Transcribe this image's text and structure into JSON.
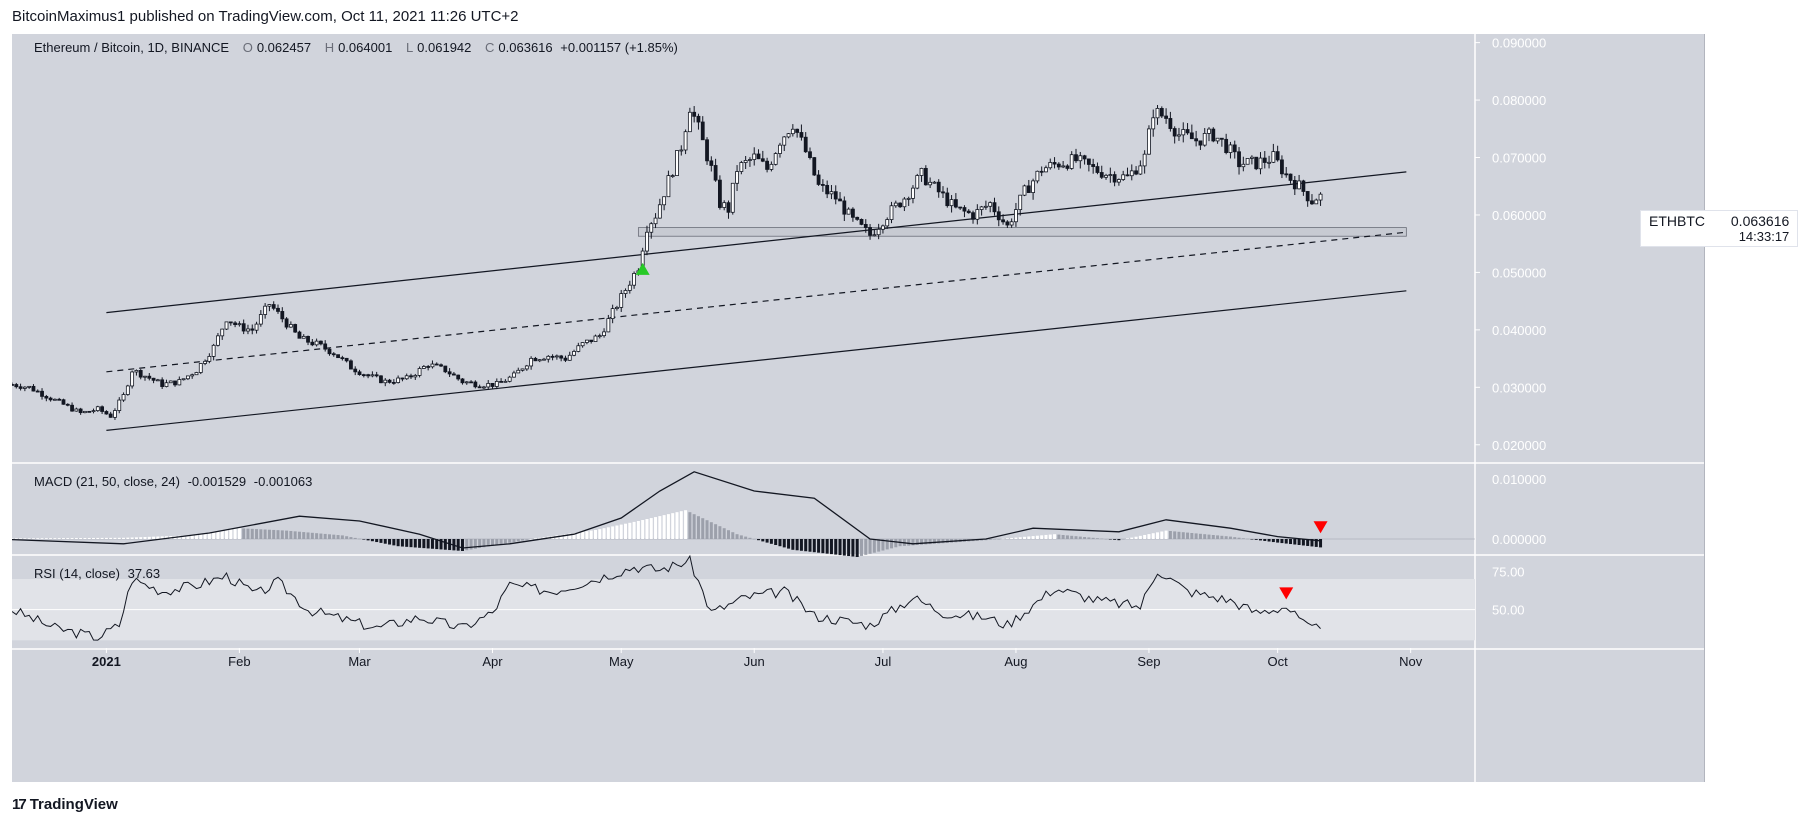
{
  "header": {
    "publisher_line": "BitcoinMaximus1 published on TradingView.com, Oct 11, 2021 11:26 UTC+2"
  },
  "footer": {
    "brand": "TradingView",
    "logo_glyph": "17"
  },
  "price_panel": {
    "title": "Ethereum / Bitcoin, 1D, BINANCE",
    "o_label": "O",
    "o": "0.062457",
    "h_label": "H",
    "h": "0.064001",
    "l_label": "L",
    "l": "0.061942",
    "c_label": "C",
    "c": "0.063616",
    "change": "+0.001157 (+1.85%)",
    "currency": "BTC",
    "tag_symbol": "ETHBTC",
    "tag_price": "0.063616",
    "tag_timer": "14:33:17"
  },
  "macd_panel": {
    "title": "MACD (21, 50, close, 24)",
    "v1": "-0.001529",
    "v2": "-0.001063"
  },
  "rsi_panel": {
    "title": "RSI (14, close)",
    "value": "37.63"
  },
  "colors": {
    "background": "#d1d4dc",
    "candle_up": "#ffffff",
    "candle_down": "#131722",
    "hist_up": "#ffffff",
    "hist_down": "#131722",
    "hist_fade": "#9ca0ab",
    "arrow_up": "#26c926",
    "arrow_down": "#ff0000",
    "rsi_band": "#e1e3e8"
  },
  "chart_data": [
    {
      "type": "candlestick",
      "title": "Ethereum / Bitcoin, 1D, BINANCE",
      "x_range": [
        "2020-12-10",
        "2021-11-16"
      ],
      "x_ticks": [
        {
          "date": "2021-01-01",
          "label": "2021"
        },
        {
          "date": "2021-02-01",
          "label": "Feb"
        },
        {
          "date": "2021-03-01",
          "label": "Mar"
        },
        {
          "date": "2021-04-01",
          "label": "Apr"
        },
        {
          "date": "2021-05-01",
          "label": "May"
        },
        {
          "date": "2021-06-01",
          "label": "Jun"
        },
        {
          "date": "2021-07-01",
          "label": "Jul"
        },
        {
          "date": "2021-08-01",
          "label": "Aug"
        },
        {
          "date": "2021-09-01",
          "label": "Sep"
        },
        {
          "date": "2021-10-01",
          "label": "Oct"
        },
        {
          "date": "2021-11-01",
          "label": "Nov"
        }
      ],
      "y_range": [
        0.017,
        0.0915
      ],
      "y_ticks": [
        "0.020000",
        "0.030000",
        "0.040000",
        "0.050000",
        "0.060000",
        "0.070000",
        "0.080000",
        "0.090000"
      ],
      "close_path": [
        [
          "2020-12-10",
          0.0305
        ],
        [
          "2020-12-14",
          0.03
        ],
        [
          "2020-12-18",
          0.0285
        ],
        [
          "2020-12-22",
          0.027
        ],
        [
          "2020-12-26",
          0.0255
        ],
        [
          "2020-12-30",
          0.0262
        ],
        [
          "2021-01-02",
          0.025
        ],
        [
          "2021-01-05",
          0.0285
        ],
        [
          "2021-01-07",
          0.033
        ],
        [
          "2021-01-10",
          0.032
        ],
        [
          "2021-01-14",
          0.0305
        ],
        [
          "2021-01-18",
          0.031
        ],
        [
          "2021-01-22",
          0.033
        ],
        [
          "2021-01-26",
          0.037
        ],
        [
          "2021-01-29",
          0.042
        ],
        [
          "2021-02-01",
          0.0405
        ],
        [
          "2021-02-04",
          0.04
        ],
        [
          "2021-02-08",
          0.0445
        ],
        [
          "2021-02-11",
          0.042
        ],
        [
          "2021-02-15",
          0.0385
        ],
        [
          "2021-02-19",
          0.0375
        ],
        [
          "2021-02-23",
          0.036
        ],
        [
          "2021-02-27",
          0.0335
        ],
        [
          "2021-03-03",
          0.032
        ],
        [
          "2021-03-07",
          0.031
        ],
        [
          "2021-03-12",
          0.0315
        ],
        [
          "2021-03-17",
          0.034
        ],
        [
          "2021-03-21",
          0.033
        ],
        [
          "2021-03-25",
          0.031
        ],
        [
          "2021-03-29",
          0.0305
        ],
        [
          "2021-04-02",
          0.0305
        ],
        [
          "2021-04-06",
          0.032
        ],
        [
          "2021-04-10",
          0.035
        ],
        [
          "2021-04-14",
          0.0355
        ],
        [
          "2021-04-18",
          0.035
        ],
        [
          "2021-04-22",
          0.0375
        ],
        [
          "2021-04-26",
          0.039
        ],
        [
          "2021-04-29",
          0.043
        ],
        [
          "2021-05-02",
          0.047
        ],
        [
          "2021-05-05",
          0.051
        ],
        [
          "2021-05-07",
          0.058
        ],
        [
          "2021-05-09",
          0.06
        ],
        [
          "2021-05-11",
          0.064
        ],
        [
          "2021-05-13",
          0.068
        ],
        [
          "2021-05-15",
          0.072
        ],
        [
          "2021-05-17",
          0.079
        ],
        [
          "2021-05-19",
          0.075
        ],
        [
          "2021-05-22",
          0.068
        ],
        [
          "2021-05-24",
          0.062
        ],
        [
          "2021-05-26",
          0.061
        ],
        [
          "2021-05-28",
          0.068
        ],
        [
          "2021-06-01",
          0.07
        ],
        [
          "2021-06-04",
          0.068
        ],
        [
          "2021-06-07",
          0.073
        ],
        [
          "2021-06-10",
          0.076
        ],
        [
          "2021-06-13",
          0.071
        ],
        [
          "2021-06-16",
          0.065
        ],
        [
          "2021-06-20",
          0.063
        ],
        [
          "2021-06-24",
          0.059
        ],
        [
          "2021-06-28",
          0.0565
        ],
        [
          "2021-07-02",
          0.06
        ],
        [
          "2021-07-06",
          0.063
        ],
        [
          "2021-07-10",
          0.067
        ],
        [
          "2021-07-14",
          0.064
        ],
        [
          "2021-07-18",
          0.061
        ],
        [
          "2021-07-22",
          0.06
        ],
        [
          "2021-07-26",
          0.062
        ],
        [
          "2021-07-30",
          0.058
        ],
        [
          "2021-08-03",
          0.064
        ],
        [
          "2021-08-07",
          0.068
        ],
        [
          "2021-08-11",
          0.069
        ],
        [
          "2021-08-15",
          0.0695
        ],
        [
          "2021-08-19",
          0.068
        ],
        [
          "2021-08-23",
          0.067
        ],
        [
          "2021-08-27",
          0.0665
        ],
        [
          "2021-08-31",
          0.07
        ],
        [
          "2021-09-02",
          0.078
        ],
        [
          "2021-09-05",
          0.077
        ],
        [
          "2021-09-08",
          0.074
        ],
        [
          "2021-09-12",
          0.073
        ],
        [
          "2021-09-16",
          0.074
        ],
        [
          "2021-09-19",
          0.072
        ],
        [
          "2021-09-22",
          0.069
        ],
        [
          "2021-09-26",
          0.069
        ],
        [
          "2021-09-30",
          0.07
        ],
        [
          "2021-10-03",
          0.067
        ],
        [
          "2021-10-06",
          0.065
        ],
        [
          "2021-10-09",
          0.0625
        ],
        [
          "2021-10-11",
          0.0636
        ]
      ],
      "last_price": 0.063616,
      "trendlines": [
        {
          "style": "solid",
          "from": [
            "2021-01-01",
            0.043
          ],
          "to": [
            "2021-10-31",
            0.0675
          ]
        },
        {
          "style": "solid",
          "from": [
            "2021-01-01",
            0.0225
          ],
          "to": [
            "2021-10-31",
            0.0468
          ]
        },
        {
          "style": "dashed",
          "from": [
            "2021-01-01",
            0.0327
          ],
          "to": [
            "2021-10-31",
            0.057
          ]
        }
      ],
      "support_zone": {
        "from_date": "2021-05-05",
        "to_date": "2021-10-31",
        "low": 0.0563,
        "high": 0.0578
      },
      "markers": [
        {
          "date": "2021-05-06",
          "price": 0.0508,
          "shape": "arrow-up",
          "color": "#26c926"
        }
      ]
    },
    {
      "type": "area",
      "title": "MACD (21, 50, close, 24)",
      "y_ticks": [
        "0.010000",
        "0.000000"
      ],
      "y_range": [
        -0.0025,
        0.0125
      ],
      "macd_path": [
        [
          "2020-12-10",
          -0.0001
        ],
        [
          "2021-01-05",
          -0.0008
        ],
        [
          "2021-01-25",
          0.001
        ],
        [
          "2021-02-15",
          0.0038
        ],
        [
          "2021-03-01",
          0.003
        ],
        [
          "2021-03-15",
          0.0008
        ],
        [
          "2021-03-25",
          -0.0015
        ],
        [
          "2021-04-05",
          -0.0008
        ],
        [
          "2021-04-20",
          0.0008
        ],
        [
          "2021-05-01",
          0.0035
        ],
        [
          "2021-05-10",
          0.008
        ],
        [
          "2021-05-18",
          0.0112
        ],
        [
          "2021-06-01",
          0.008
        ],
        [
          "2021-06-15",
          0.0068
        ],
        [
          "2021-06-28",
          0.0
        ],
        [
          "2021-07-08",
          -0.0008
        ],
        [
          "2021-07-25",
          0.0
        ],
        [
          "2021-08-05",
          0.0018
        ],
        [
          "2021-08-25",
          0.0012
        ],
        [
          "2021-09-05",
          0.0032
        ],
        [
          "2021-09-20",
          0.0018
        ],
        [
          "2021-10-01",
          0.0004
        ],
        [
          "2021-10-11",
          -0.0003
        ]
      ],
      "histogram_path": [
        [
          "2020-12-10",
          0.0001
        ],
        [
          "2021-01-05",
          0.0002
        ],
        [
          "2021-01-20",
          0.0006
        ],
        [
          "2021-02-01",
          0.0018
        ],
        [
          "2021-02-12",
          0.0014
        ],
        [
          "2021-02-25",
          0.0006
        ],
        [
          "2021-03-10",
          -0.0012
        ],
        [
          "2021-03-25",
          -0.002
        ],
        [
          "2021-04-10",
          0.0
        ],
        [
          "2021-04-25",
          0.0015
        ],
        [
          "2021-05-05",
          0.003
        ],
        [
          "2021-05-16",
          0.0048
        ],
        [
          "2021-05-28",
          0.0008
        ],
        [
          "2021-06-10",
          -0.0018
        ],
        [
          "2021-06-25",
          -0.003
        ],
        [
          "2021-07-05",
          -0.0012
        ],
        [
          "2021-07-25",
          -0.0002
        ],
        [
          "2021-08-10",
          0.0008
        ],
        [
          "2021-08-25",
          -0.0002
        ],
        [
          "2021-09-05",
          0.0014
        ],
        [
          "2021-09-20",
          0.0004
        ],
        [
          "2021-10-01",
          -0.0006
        ],
        [
          "2021-10-11",
          -0.0014
        ]
      ],
      "markers": [
        {
          "date": "2021-10-11",
          "value": 0.0018,
          "shape": "arrow-down",
          "color": "#ff0000"
        }
      ]
    },
    {
      "type": "line",
      "title": "RSI (14, close)",
      "y_ticks": [
        "75.00",
        "50.00"
      ],
      "y_range": [
        25,
        85
      ],
      "band": [
        30,
        70
      ],
      "rsi_path": [
        [
          "2020-12-10",
          50
        ],
        [
          "2020-12-20",
          38
        ],
        [
          "2020-12-30",
          32
        ],
        [
          "2021-01-04",
          40
        ],
        [
          "2021-01-07",
          70
        ],
        [
          "2021-01-14",
          62
        ],
        [
          "2021-01-22",
          66
        ],
        [
          "2021-01-29",
          72
        ],
        [
          "2021-02-05",
          60
        ],
        [
          "2021-02-10",
          68
        ],
        [
          "2021-02-17",
          50
        ],
        [
          "2021-02-25",
          44
        ],
        [
          "2021-03-05",
          38
        ],
        [
          "2021-03-15",
          45
        ],
        [
          "2021-03-25",
          38
        ],
        [
          "2021-04-01",
          48
        ],
        [
          "2021-04-05",
          66
        ],
        [
          "2021-04-15",
          62
        ],
        [
          "2021-04-25",
          70
        ],
        [
          "2021-05-04",
          78
        ],
        [
          "2021-05-10",
          76
        ],
        [
          "2021-05-17",
          82
        ],
        [
          "2021-05-22",
          48
        ],
        [
          "2021-05-30",
          58
        ],
        [
          "2021-06-08",
          62
        ],
        [
          "2021-06-15",
          46
        ],
        [
          "2021-06-28",
          40
        ],
        [
          "2021-07-08",
          58
        ],
        [
          "2021-07-15",
          48
        ],
        [
          "2021-07-25",
          45
        ],
        [
          "2021-07-30",
          40
        ],
        [
          "2021-08-10",
          64
        ],
        [
          "2021-08-20",
          56
        ],
        [
          "2021-08-30",
          52
        ],
        [
          "2021-09-03",
          76
        ],
        [
          "2021-09-10",
          62
        ],
        [
          "2021-09-20",
          56
        ],
        [
          "2021-09-26",
          48
        ],
        [
          "2021-10-03",
          52
        ],
        [
          "2021-10-08",
          38
        ],
        [
          "2021-10-11",
          37.63
        ]
      ],
      "markers": [
        {
          "date": "2021-10-03",
          "value": 60,
          "shape": "arrow-down",
          "color": "#ff0000"
        }
      ]
    }
  ]
}
